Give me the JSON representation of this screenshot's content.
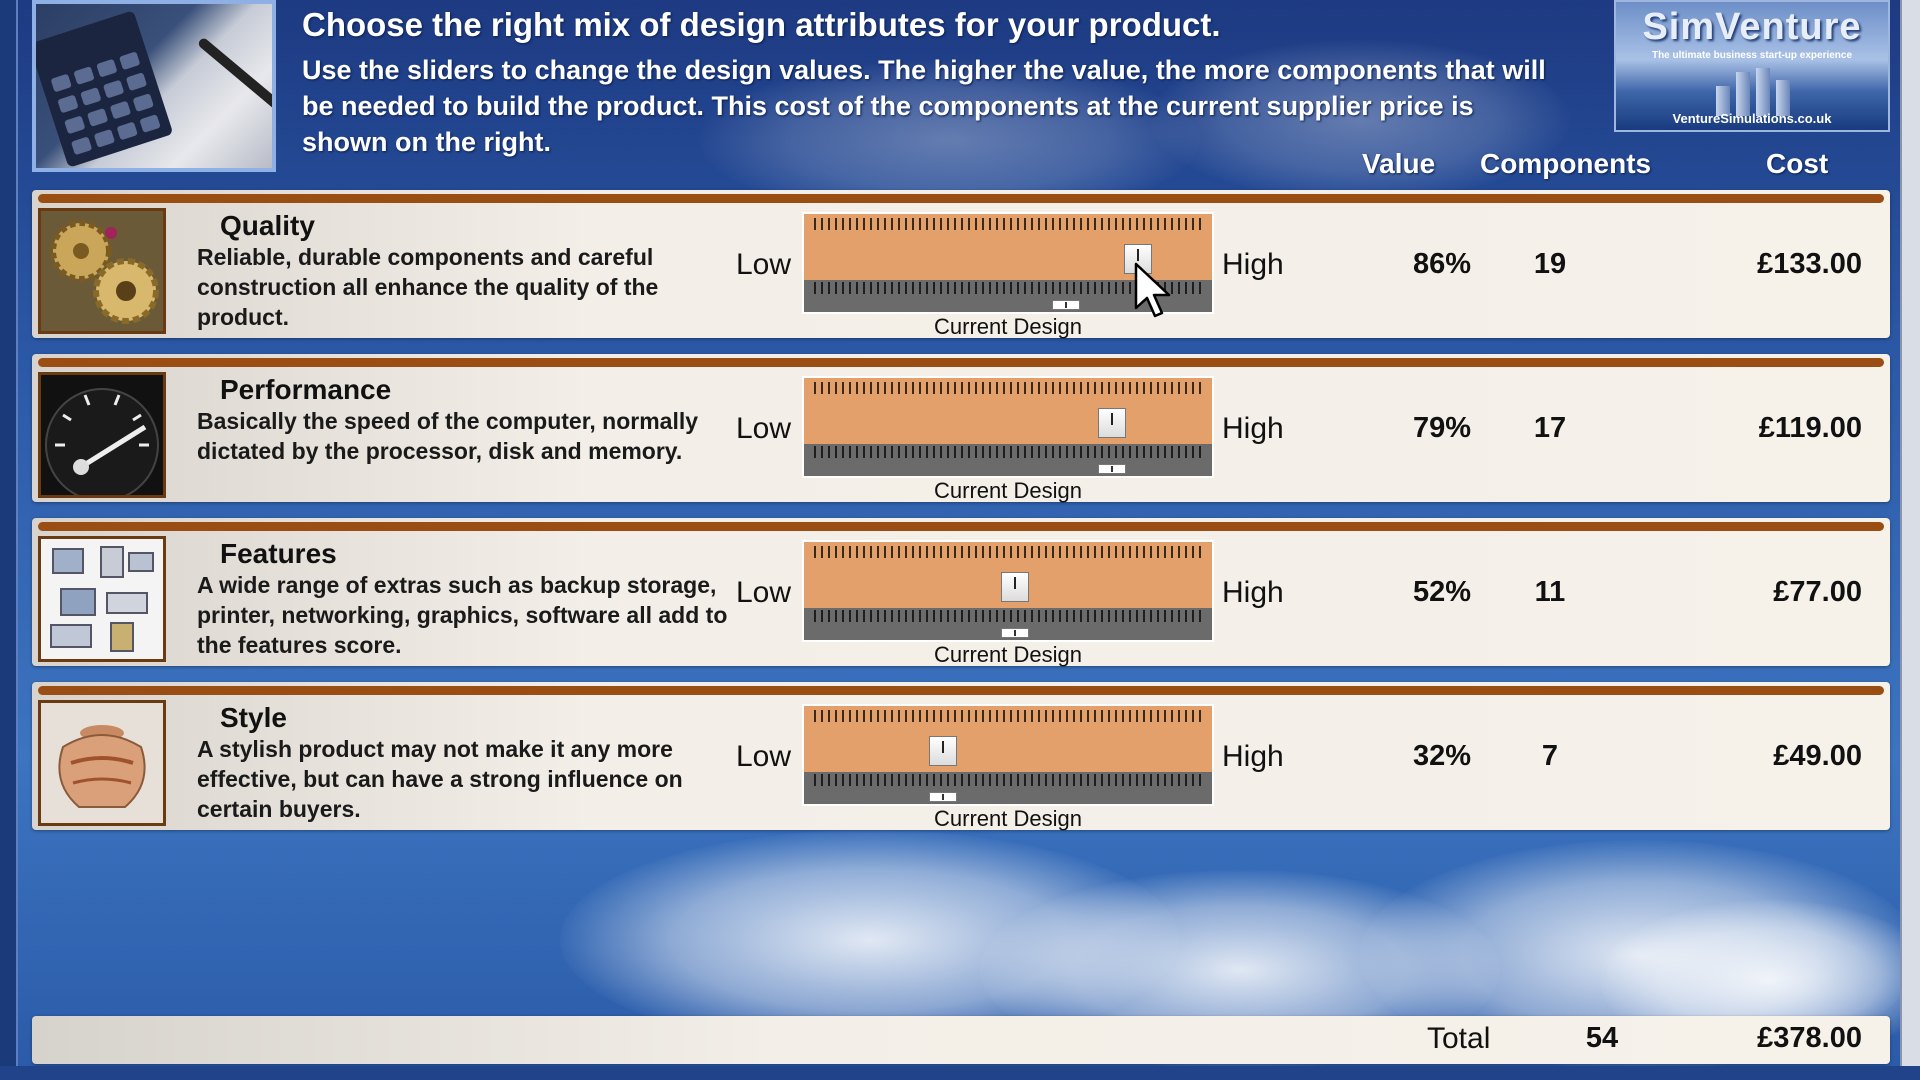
{
  "header": {
    "title": "Choose the right mix of design attributes for your product.",
    "instructions": "Use the sliders to change the design values. The higher the value, the more components that will be needed to build the product. This cost of the components at the current supplier price is shown on the right."
  },
  "logo": {
    "brand": "SimVenture",
    "tagline": "The ultimate business start-up experience",
    "url": "VentureSimulations.co.uk"
  },
  "columns": {
    "value": "Value",
    "components": "Components",
    "cost": "Cost"
  },
  "attributes": [
    {
      "name": "Quality",
      "description": "Reliable, durable components and careful construction all enhance the quality of the product.",
      "low_label": "Low",
      "high_label": "High",
      "slider_value": 0.86,
      "current_design_value": 0.66,
      "current_label": "Current Design",
      "value": "86%",
      "components": "19",
      "cost": "£133.00",
      "icon": "clockwork-gears-icon"
    },
    {
      "name": "Performance",
      "description": "Basically the speed of the computer, normally dictated by the processor, disk and memory.",
      "low_label": "Low",
      "high_label": "High",
      "slider_value": 0.79,
      "current_design_value": 0.79,
      "current_label": "Current Design",
      "value": "79%",
      "components": "17",
      "cost": "£119.00",
      "icon": "speedometer-icon"
    },
    {
      "name": "Features",
      "description": "A wide range of extras such as backup storage, printer, networking, graphics, software all add to the features score.",
      "low_label": "Low",
      "high_label": "High",
      "slider_value": 0.52,
      "current_design_value": 0.52,
      "current_label": "Current Design",
      "value": "52%",
      "components": "11",
      "cost": "£77.00",
      "icon": "computer-peripherals-icon"
    },
    {
      "name": "Style",
      "description": "A stylish product may not make it any more effective, but can have a strong influence on certain buyers.",
      "low_label": "Low",
      "high_label": "High",
      "slider_value": 0.32,
      "current_design_value": 0.32,
      "current_label": "Current Design",
      "value": "32%",
      "components": "7",
      "cost": "£49.00",
      "icon": "decorated-pot-icon"
    }
  ],
  "total": {
    "label": "Total",
    "components": "54",
    "cost": "£378.00"
  },
  "colors": {
    "panel_bar": "#9b4e14",
    "slider_top": "#e4a06a",
    "slider_bottom": "#6b6b6b"
  }
}
